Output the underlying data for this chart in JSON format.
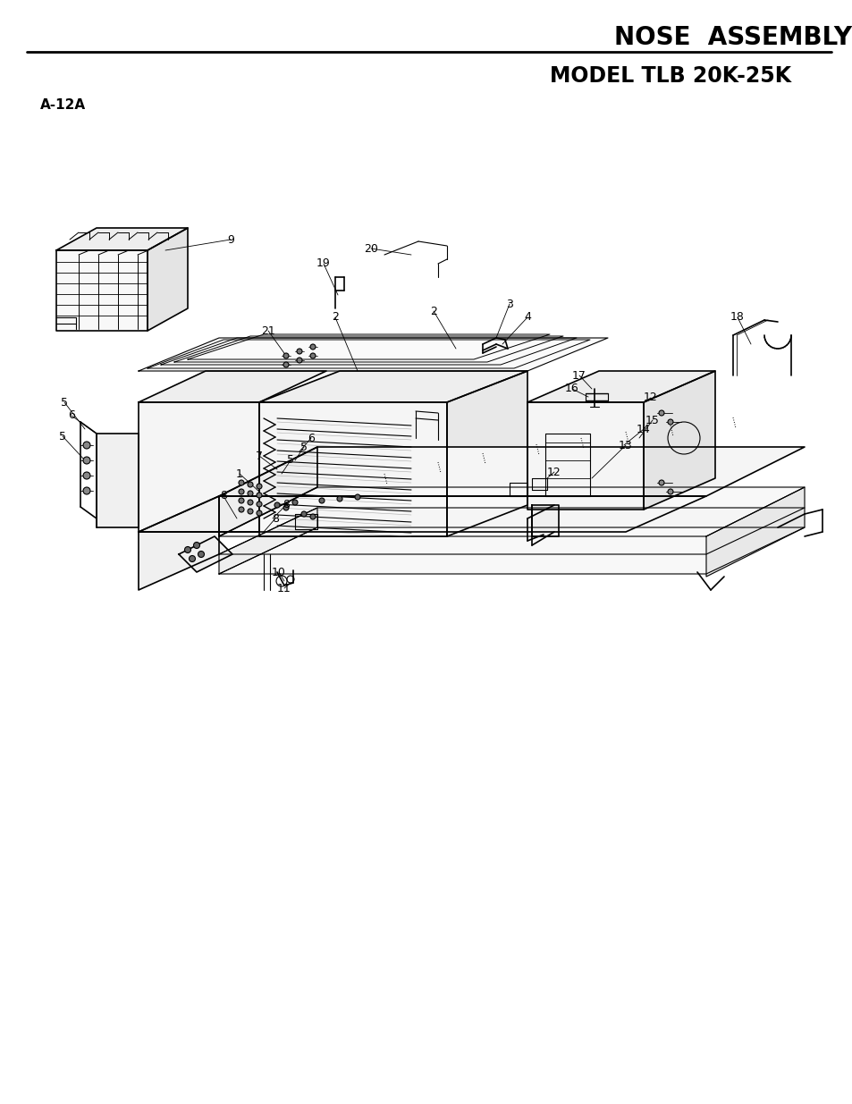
{
  "title": "NOSE  ASSEMBLY",
  "subtitle": "MODEL TLB 20K-25K",
  "page_label": "A-12A",
  "title_fontsize": 20,
  "subtitle_fontsize": 17,
  "label_fontsize": 11,
  "part_num_fontsize": 9,
  "bg_color": "#ffffff",
  "text_color": "#000000",
  "line_color": "#000000",
  "fig_width": 9.54,
  "fig_height": 12.35,
  "dpi": 100
}
